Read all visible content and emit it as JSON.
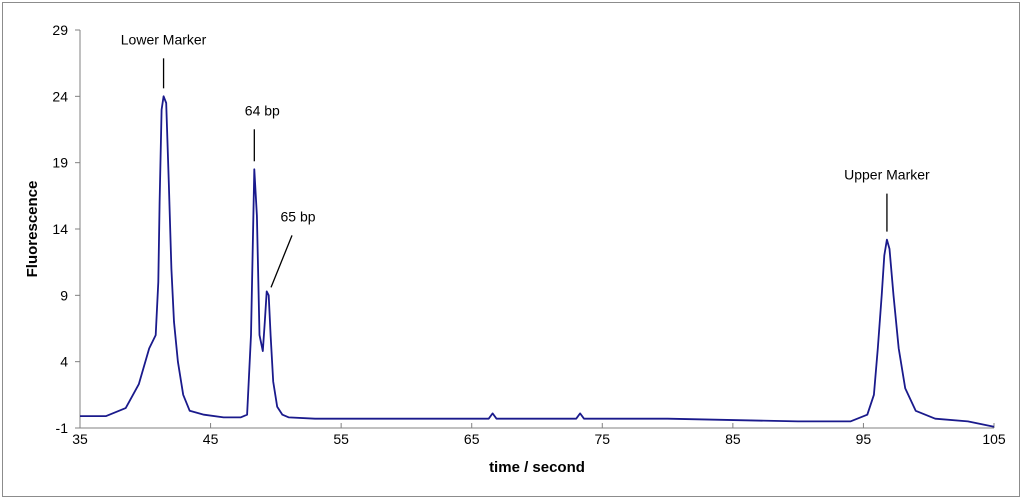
{
  "chart_data": {
    "type": "line",
    "title": "",
    "xlabel": "time / second",
    "ylabel": "Fluorescence",
    "xlim": [
      35,
      105
    ],
    "ylim": [
      -1,
      29
    ],
    "xticks": [
      35,
      45,
      55,
      65,
      75,
      85,
      95,
      105
    ],
    "yticks": [
      -1,
      4,
      9,
      14,
      19,
      24,
      29
    ],
    "grid": false,
    "legend": "none",
    "series": [
      {
        "color": "#1a1a8c",
        "x": [
          35,
          37,
          38.5,
          39.5,
          40.3,
          40.8,
          41.0,
          41.1,
          41.25,
          41.4,
          41.6,
          41.8,
          42.0,
          42.2,
          42.5,
          42.9,
          43.4,
          44.5,
          46,
          47.3,
          47.8,
          48.1,
          48.35,
          48.55,
          48.75,
          49.0,
          49.15,
          49.3,
          49.45,
          49.6,
          49.8,
          50.1,
          50.5,
          51,
          53,
          60,
          66.3,
          66.6,
          66.9,
          73.0,
          73.3,
          73.6,
          80,
          90,
          94,
          95.3,
          95.8,
          96.1,
          96.4,
          96.6,
          96.8,
          97.0,
          97.3,
          97.7,
          98.2,
          99,
          100.5,
          103,
          105
        ],
        "y": [
          -0.1,
          -0.1,
          0.5,
          2.3,
          5.0,
          6.0,
          10.0,
          16.0,
          23.0,
          24.0,
          23.5,
          17.5,
          11.0,
          7.0,
          4.0,
          1.5,
          0.3,
          0.0,
          -0.2,
          -0.2,
          0.0,
          6.0,
          18.5,
          15.0,
          6.0,
          4.8,
          7.0,
          9.3,
          9.0,
          6.0,
          2.5,
          0.6,
          0.0,
          -0.2,
          -0.3,
          -0.3,
          -0.3,
          0.1,
          -0.3,
          -0.3,
          0.1,
          -0.3,
          -0.3,
          -0.5,
          -0.5,
          0.0,
          1.5,
          5.0,
          9.0,
          12.0,
          13.2,
          12.5,
          9.0,
          5.0,
          2.0,
          0.3,
          -0.3,
          -0.5,
          -0.9
        ]
      }
    ],
    "annotations": [
      {
        "text": "Lower Marker",
        "x": 41.4,
        "y": 24.0
      },
      {
        "text": "64 bp",
        "x": 48.35,
        "y": 18.5
      },
      {
        "text": "65 bp",
        "x": 49.4,
        "y": 9.3
      },
      {
        "text": "Upper Marker",
        "x": 96.8,
        "y": 13.2
      }
    ]
  }
}
